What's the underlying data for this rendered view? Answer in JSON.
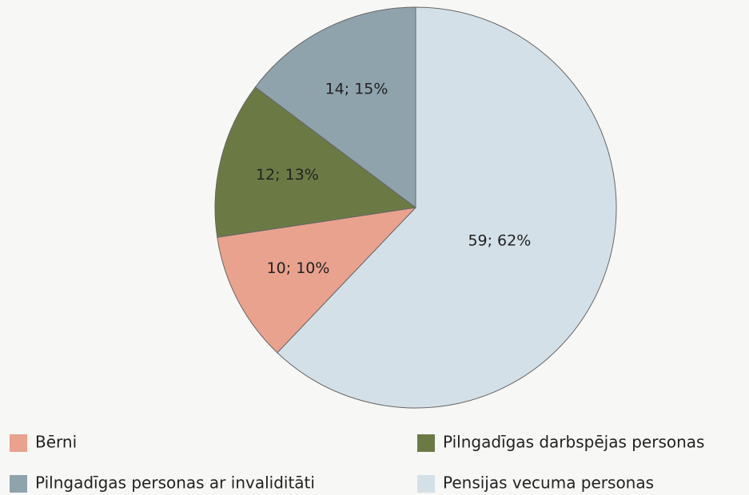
{
  "chart_data": {
    "type": "pie",
    "categories": [
      "Bērni",
      "Pilngadīgas darbspējas personas",
      "Pilngadīgas personas ar invaliditāti",
      "Pensijas vecuma personas"
    ],
    "values": [
      10,
      12,
      14,
      59
    ],
    "value_labels": [
      "10; 10%",
      "12; 13%",
      "14; 15%",
      "59; 62%"
    ],
    "colors": [
      "#e9a28e",
      "#6b7a45",
      "#8fa3ad",
      "#d4e0e7"
    ]
  }
}
